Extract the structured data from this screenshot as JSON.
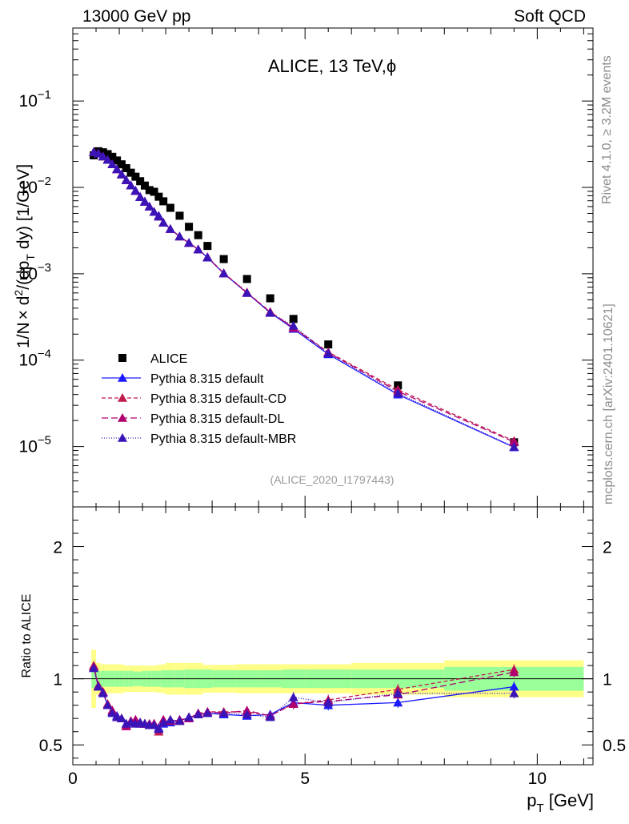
{
  "header": {
    "left": "13000 GeV pp",
    "right": "Soft QCD"
  },
  "side": {
    "rivet": "Rivet 4.1.0, ≥ 3.2M events",
    "mcplots": "mcplots.cern.ch [arXiv:2401.10621]"
  },
  "chart_data": {
    "type": "scatter",
    "title": "ALICE, 13 TeV,ϕ",
    "analysis_id": "(ALICE_2020_I1797443)",
    "ylabel": "1/N × d²/(dp_T dy) [1/GeV]",
    "ylabel_parts": {
      "a": "1/N",
      "times": "×",
      "b": " d",
      "sup": "2",
      "c": "/(dp",
      "sub": "T",
      "d": " dy) [1/GeV]"
    },
    "xlabel": "p_T [GeV]",
    "xlabel_parts": {
      "a": "p",
      "sub": "T",
      "b": " [GeV]"
    },
    "ratio_ylabel": "Ratio to ALICE",
    "xlim": [
      0,
      11.2
    ],
    "ylim_log": [
      2e-06,
      0.7
    ],
    "ratio_ylim": [
      0.35,
      2.3
    ],
    "x_ticks": [
      "0",
      "5",
      "10"
    ],
    "y_ticks": [
      {
        "base": "10",
        "exp": "−1"
      },
      {
        "base": "10",
        "exp": "−2"
      },
      {
        "base": "10",
        "exp": "−3"
      },
      {
        "base": "10",
        "exp": "−4"
      },
      {
        "base": "10",
        "exp": "−5"
      }
    ],
    "ratio_ticks": [
      "2",
      "1",
      "0.5"
    ],
    "x": [
      0.45,
      0.55,
      0.65,
      0.75,
      0.85,
      0.95,
      1.05,
      1.15,
      1.25,
      1.35,
      1.45,
      1.55,
      1.65,
      1.75,
      1.85,
      1.95,
      2.1,
      2.3,
      2.5,
      2.7,
      2.9,
      3.25,
      3.75,
      4.25,
      4.75,
      5.5,
      7.0,
      9.5
    ],
    "series": [
      {
        "name": "ALICE",
        "color": "#000000",
        "marker": "square",
        "values": [
          0.0235,
          0.0262,
          0.0255,
          0.0243,
          0.0226,
          0.0205,
          0.0185,
          0.0167,
          0.0148,
          0.0133,
          0.0118,
          0.0105,
          0.0093,
          0.0089,
          0.0078,
          0.0069,
          0.0058,
          0.0047,
          0.0035,
          0.0028,
          0.0021,
          0.00148,
          0.00087,
          0.00052,
          0.0003,
          0.000152,
          5.1e-05,
          1.12e-05
        ]
      },
      {
        "name": "Pythia 8.315 default",
        "color": "#1a1aff",
        "dash": "",
        "marker": "triangle",
        "values": [
          0.0257,
          0.0247,
          0.0229,
          0.0209,
          0.0186,
          0.0163,
          0.0142,
          0.0122,
          0.0106,
          0.0092,
          0.0078,
          0.0069,
          0.006,
          0.0052,
          0.0047,
          0.0039,
          0.0033,
          0.0027,
          0.00228,
          0.00191,
          0.00154,
          0.00101,
          0.0006,
          0.000355,
          0.00023,
          0.000117,
          4e-05,
          9.8e-06
        ]
      },
      {
        "name": "Pythia 8.315 default-CD",
        "color": "#c21a4d",
        "dash": "5,3",
        "marker": "triangle",
        "values": [
          0.0256,
          0.0246,
          0.0228,
          0.0208,
          0.0185,
          0.0162,
          0.0141,
          0.0121,
          0.0105,
          0.0091,
          0.0077,
          0.0068,
          0.006,
          0.0052,
          0.0046,
          0.0039,
          0.0033,
          0.0027,
          0.00228,
          0.00192,
          0.00156,
          0.00102,
          0.00061,
          0.000362,
          0.000238,
          0.000124,
          4.55e-05,
          1.16e-05
        ]
      },
      {
        "name": "Pythia 8.315 default-DL",
        "color": "#b00070",
        "dash": "8,4",
        "marker": "triangle",
        "values": [
          0.0257,
          0.0247,
          0.0228,
          0.0208,
          0.0185,
          0.0162,
          0.0141,
          0.0121,
          0.0105,
          0.0091,
          0.0077,
          0.0068,
          0.006,
          0.0052,
          0.0046,
          0.0039,
          0.0033,
          0.0027,
          0.00228,
          0.00192,
          0.00155,
          0.00101,
          0.0006,
          0.00036,
          0.000236,
          0.000122,
          4.35e-05,
          1.13e-05
        ]
      },
      {
        "name": "Pythia 8.315 default-MBR",
        "color": "#3b14b8",
        "dash": "1,2",
        "marker": "triangle",
        "values": [
          0.0256,
          0.0246,
          0.0228,
          0.0208,
          0.0185,
          0.0162,
          0.0141,
          0.0121,
          0.0105,
          0.0091,
          0.0077,
          0.0068,
          0.006,
          0.0052,
          0.0046,
          0.0039,
          0.0033,
          0.0027,
          0.00228,
          0.00191,
          0.00155,
          0.00101,
          0.0006,
          0.000352,
          0.00025,
          0.00012,
          4.15e-05,
          9.9e-06
        ]
      }
    ],
    "ratio_band": {
      "edges": [
        0.4,
        0.5,
        0.6,
        0.7,
        0.8,
        0.9,
        1.0,
        1.1,
        1.2,
        1.3,
        1.4,
        1.5,
        1.6,
        1.7,
        1.8,
        1.9,
        2.0,
        2.2,
        2.4,
        2.6,
        2.8,
        3.0,
        3.5,
        4.0,
        4.5,
        5.0,
        6.0,
        8.0,
        11.0
      ],
      "stat_sys": [
        0.07,
        0.06,
        0.06,
        0.06,
        0.06,
        0.06,
        0.06,
        0.06,
        0.06,
        0.055,
        0.055,
        0.06,
        0.06,
        0.06,
        0.06,
        0.065,
        0.065,
        0.065,
        0.07,
        0.07,
        0.07,
        0.065,
        0.065,
        0.065,
        0.07,
        0.07,
        0.07,
        0.09
      ],
      "total": [
        0.22,
        0.12,
        0.11,
        0.11,
        0.11,
        0.11,
        0.11,
        0.1,
        0.1,
        0.1,
        0.1,
        0.1,
        0.1,
        0.1,
        0.105,
        0.11,
        0.12,
        0.12,
        0.12,
        0.12,
        0.105,
        0.105,
        0.11,
        0.11,
        0.11,
        0.11,
        0.12,
        0.14
      ]
    },
    "ratio_series": [
      {
        "name": "Pythia 8.315 default",
        "values": [
          1.09,
          0.94,
          0.9,
          0.8,
          0.75,
          0.72,
          0.7,
          0.66,
          0.67,
          0.67,
          0.66,
          0.66,
          0.65,
          0.65,
          0.63,
          0.66,
          0.67,
          0.69,
          0.7,
          0.73,
          0.74,
          0.73,
          0.72,
          0.73,
          0.82,
          0.8,
          0.82,
          0.94
        ]
      },
      {
        "name": "Pythia 8.315 default-CD",
        "values": [
          1.1,
          0.95,
          0.9,
          0.81,
          0.76,
          0.71,
          0.7,
          0.65,
          0.68,
          0.69,
          0.67,
          0.66,
          0.65,
          0.66,
          0.6,
          0.69,
          0.69,
          0.68,
          0.71,
          0.73,
          0.75,
          0.75,
          0.75,
          0.72,
          0.81,
          0.84,
          0.92,
          1.07
        ]
      },
      {
        "name": "Pythia 8.315 default-DL",
        "values": [
          1.09,
          0.94,
          0.9,
          0.8,
          0.76,
          0.71,
          0.7,
          0.64,
          0.68,
          0.69,
          0.66,
          0.66,
          0.66,
          0.66,
          0.62,
          0.69,
          0.68,
          0.69,
          0.7,
          0.74,
          0.75,
          0.74,
          0.76,
          0.72,
          0.81,
          0.83,
          0.88,
          1.05
        ]
      },
      {
        "name": "Pythia 8.315 default-MBR",
        "values": [
          1.08,
          0.94,
          0.89,
          0.8,
          0.74,
          0.71,
          0.7,
          0.66,
          0.67,
          0.66,
          0.67,
          0.66,
          0.65,
          0.65,
          0.62,
          0.67,
          0.69,
          0.68,
          0.71,
          0.73,
          0.74,
          0.74,
          0.73,
          0.71,
          0.86,
          0.82,
          0.89,
          0.89
        ]
      }
    ]
  }
}
